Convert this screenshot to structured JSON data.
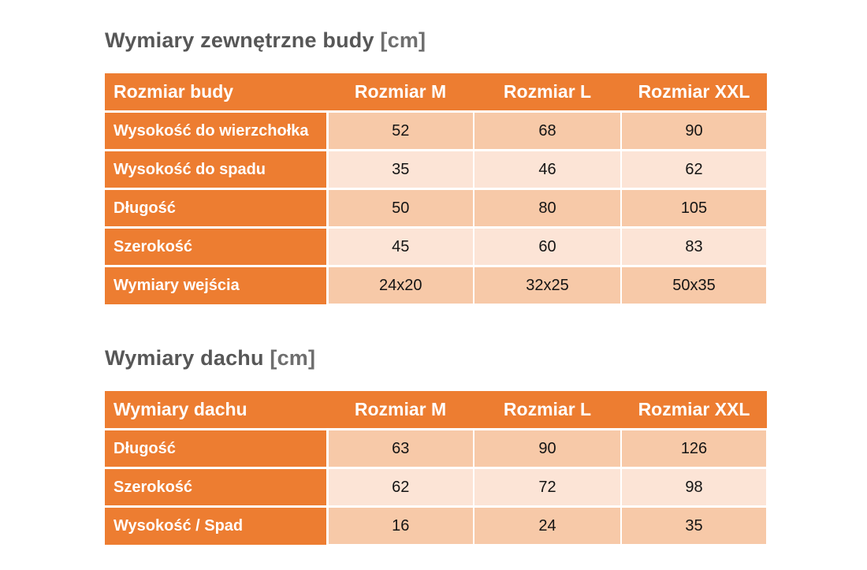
{
  "colors": {
    "header_bg": "#ED7D31",
    "label_column_bg": "#ED7D31",
    "row_shade_dark": "#F7C9A8",
    "row_shade_light": "#FCE4D6",
    "header_text": "#FFFFFF",
    "title_text": "#575757",
    "cell_text": "#141414",
    "page_bg": "#FFFFFF"
  },
  "tables": [
    {
      "title_main": "Wymiary zewnętrzne budy",
      "title_unit": "[cm]",
      "header": [
        "Rozmiar budy",
        "Rozmiar M",
        "Rozmiar L",
        "Rozmiar XXL"
      ],
      "rows": [
        {
          "label": "Wysokość do wierzchołka",
          "values": [
            "52",
            "68",
            "90"
          ]
        },
        {
          "label": "Wysokość do spadu",
          "values": [
            "35",
            "46",
            "62"
          ]
        },
        {
          "label": "Długość",
          "values": [
            "50",
            "80",
            "105"
          ]
        },
        {
          "label": "Szerokość",
          "values": [
            "45",
            "60",
            "83"
          ]
        },
        {
          "label": "Wymiary wejścia",
          "values": [
            "24x20",
            "32x25",
            "50x35"
          ]
        }
      ]
    },
    {
      "title_main": "Wymiary dachu",
      "title_unit": "[cm]",
      "header": [
        "Wymiary dachu",
        "Rozmiar M",
        "Rozmiar L",
        "Rozmiar XXL"
      ],
      "rows": [
        {
          "label": "Długość",
          "values": [
            "63",
            "90",
            "126"
          ]
        },
        {
          "label": "Szerokość",
          "values": [
            "62",
            "72",
            "98"
          ]
        },
        {
          "label": "Wysokość / Spad",
          "values": [
            "16",
            "24",
            "35"
          ]
        }
      ]
    }
  ]
}
